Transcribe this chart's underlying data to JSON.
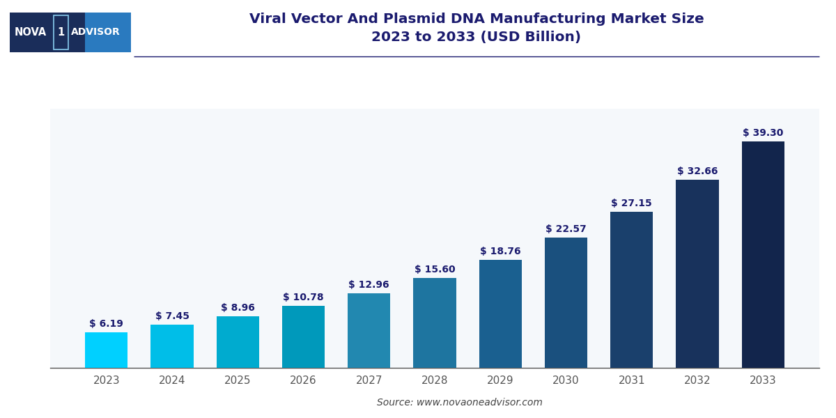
{
  "title_line1": "Viral Vector And Plasmid DNA Manufacturing Market Size",
  "title_line2": "2023 to 2033 (USD Billion)",
  "years": [
    "2023",
    "2024",
    "2025",
    "2026",
    "2027",
    "2028",
    "2029",
    "2030",
    "2031",
    "2032",
    "2033"
  ],
  "values": [
    6.19,
    7.45,
    8.96,
    10.78,
    12.96,
    15.6,
    18.76,
    22.57,
    27.15,
    32.66,
    39.3
  ],
  "bar_colors": [
    "#00D0FF",
    "#00BEE8",
    "#00ABCF",
    "#0099BB",
    "#2288B0",
    "#1E75A0",
    "#1A6090",
    "#1A507E",
    "#1A406C",
    "#18325C",
    "#12254C"
  ],
  "labels": [
    "$ 6.19",
    "$ 7.45",
    "$ 8.96",
    "$ 10.78",
    "$ 12.96",
    "$ 15.60",
    "$ 18.76",
    "$ 22.57",
    "$ 27.15",
    "$ 32.66",
    "$ 39.30"
  ],
  "ylim": [
    0,
    45
  ],
  "source_text": "Source: www.novaoneadvisor.com",
  "background_color": "#ffffff",
  "plot_background": "#f5f8fb",
  "grid_color": "#ffffff",
  "title_color": "#1a1a6e",
  "label_color": "#1a1a6e",
  "axis_color": "#555555",
  "source_color": "#444444",
  "title_fontsize": 14.5,
  "label_fontsize": 10,
  "tick_fontsize": 11,
  "source_fontsize": 10,
  "bar_width": 0.65,
  "logo_bg_dark": "#1a2d5a",
  "logo_bg_light": "#2a7abf",
  "logo_nova_color": "#ffffff",
  "logo_1_color": "#ffffff",
  "logo_advisor_color": "#00ccff"
}
